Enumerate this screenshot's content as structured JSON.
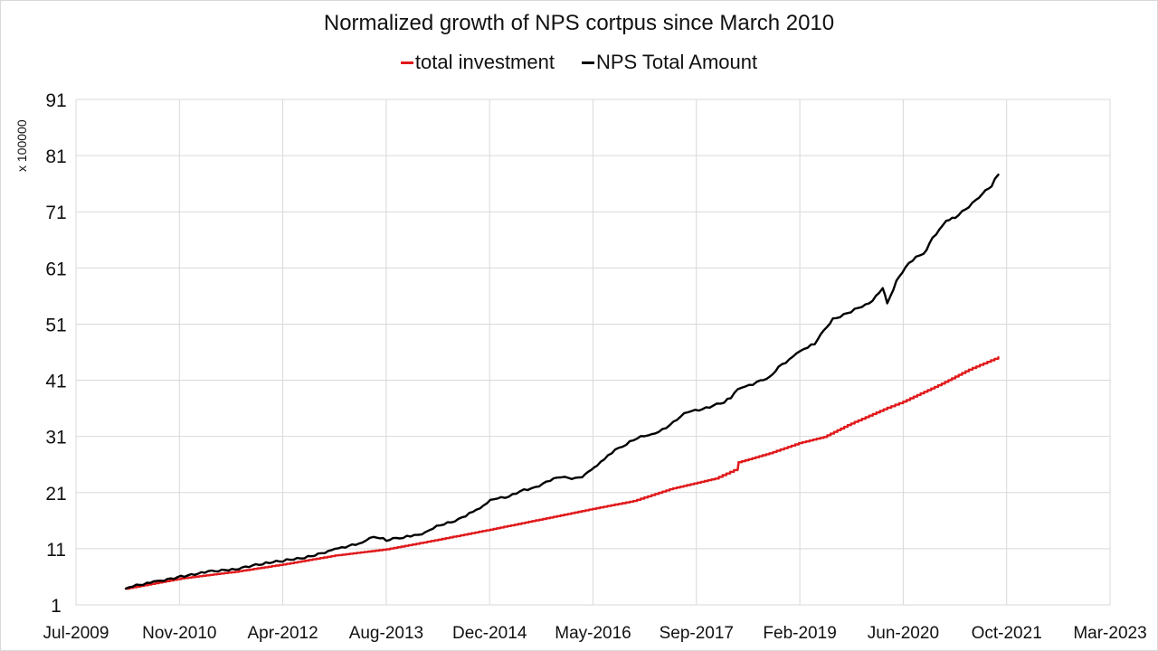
{
  "chart_data": {
    "type": "line",
    "title": "Normalized growth of NPS cortpus since March 2010",
    "xlabel": "",
    "ylabel": "x 100000",
    "ylim": [
      1,
      91
    ],
    "yticks": [
      1,
      11,
      21,
      31,
      41,
      51,
      61,
      71,
      81,
      91
    ],
    "xlim": [
      "Jul-2009",
      "Mar-2023"
    ],
    "xticks": [
      "Jul-2009",
      "Nov-2010",
      "Apr-2012",
      "Aug-2013",
      "Dec-2014",
      "May-2016",
      "Sep-2017",
      "Feb-2019",
      "Jun-2020",
      "Oct-2021",
      "Mar-2023"
    ],
    "grid": true,
    "legend_position": "top-center",
    "series": [
      {
        "name": "total investment",
        "color": "#e0191b",
        "x": [
          2010.16,
          2010.89,
          2011.61,
          2012.24,
          2012.93,
          2013.61,
          2014.25,
          2014.98,
          2015.68,
          2016.34,
          2016.88,
          2017.36,
          2017.96,
          2018.26,
          2018.27,
          2018.68,
          2019.07,
          2019.4,
          2019.76,
          2020.24,
          2020.45,
          2020.96,
          2021.32,
          2021.71
        ],
        "values": [
          3.9,
          5.7,
          6.9,
          8.2,
          9.8,
          10.9,
          12.5,
          14.4,
          16.3,
          18.1,
          19.5,
          21.6,
          23.5,
          25.3,
          26.4,
          28.0,
          29.8,
          30.9,
          33.3,
          36.1,
          37.2,
          40.4,
          42.9,
          45.1
        ]
      },
      {
        "name": "NPS Total Amount",
        "color": "#000000",
        "x": [
          2010.16,
          2010.53,
          2010.89,
          2011.25,
          2011.61,
          2011.97,
          2012.24,
          2012.57,
          2012.93,
          2013.29,
          2013.44,
          2013.61,
          2013.83,
          2014.13,
          2014.37,
          2014.61,
          2014.85,
          2015.03,
          2015.33,
          2015.68,
          2015.92,
          2016.16,
          2016.28,
          2016.4,
          2016.64,
          2016.88,
          2017.12,
          2017.36,
          2017.6,
          2017.84,
          2018.08,
          2018.17,
          2018.26,
          2018.56,
          2018.68,
          2018.8,
          2019.04,
          2019.28,
          2019.4,
          2019.52,
          2019.76,
          2020.0,
          2020.18,
          2020.24,
          2020.36,
          2020.48,
          2020.62,
          2020.72,
          2020.84,
          2021.02,
          2021.14,
          2021.32,
          2021.5,
          2021.62,
          2021.71
        ],
        "values": [
          3.9,
          5.2,
          6.2,
          7.0,
          7.3,
          8.2,
          8.7,
          9.7,
          11.0,
          12.1,
          13.1,
          12.4,
          12.9,
          14.0,
          15.3,
          16.6,
          18.2,
          19.8,
          20.8,
          22.6,
          23.7,
          23.7,
          24.7,
          25.8,
          28.7,
          30.3,
          31.4,
          33.0,
          35.3,
          36.2,
          37.0,
          37.8,
          39.4,
          41.0,
          41.6,
          43.4,
          45.8,
          47.4,
          49.9,
          52.0,
          53.1,
          54.7,
          57.4,
          54.7,
          58.7,
          61.1,
          63.0,
          63.5,
          66.4,
          69.4,
          69.9,
          71.8,
          74.2,
          75.5,
          77.6
        ]
      }
    ]
  }
}
